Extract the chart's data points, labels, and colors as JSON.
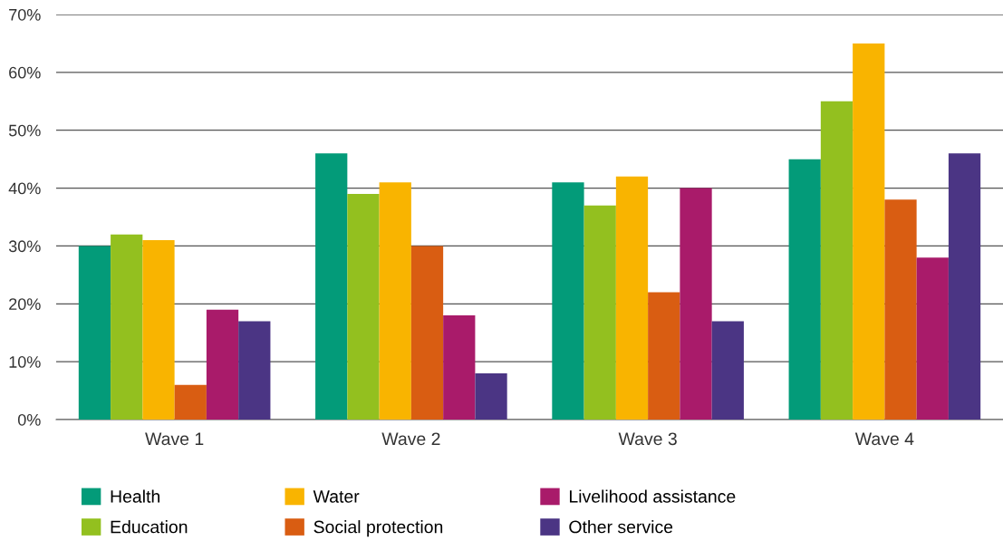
{
  "chart_data": {
    "type": "bar",
    "categories": [
      "Wave 1",
      "Wave 2",
      "Wave 3",
      "Wave 4"
    ],
    "series": [
      {
        "name": "Health",
        "color": "#039b79",
        "values": [
          30,
          46,
          41,
          45
        ]
      },
      {
        "name": "Education",
        "color": "#93c01f",
        "values": [
          32,
          39,
          37,
          55
        ]
      },
      {
        "name": "Water",
        "color": "#f9b400",
        "values": [
          31,
          41,
          42,
          65
        ]
      },
      {
        "name": "Social protection",
        "color": "#d95d12",
        "values": [
          6,
          30,
          22,
          38
        ]
      },
      {
        "name": "Livelihood assistance",
        "color": "#a91b6a",
        "values": [
          19,
          18,
          40,
          28
        ]
      },
      {
        "name": "Other service",
        "color": "#4b3584",
        "values": [
          17,
          8,
          17,
          46
        ]
      }
    ],
    "ylim": [
      0,
      70
    ],
    "yticks": [
      {
        "value": 0,
        "label": "0%"
      },
      {
        "value": 10,
        "label": "10%"
      },
      {
        "value": 20,
        "label": "20%"
      },
      {
        "value": 30,
        "label": "30%"
      },
      {
        "value": 40,
        "label": "40%"
      },
      {
        "value": 50,
        "label": "50%"
      },
      {
        "value": 60,
        "label": "60%"
      },
      {
        "value": 70,
        "label": "70%"
      }
    ],
    "grid": "y",
    "legend": "bottom"
  }
}
